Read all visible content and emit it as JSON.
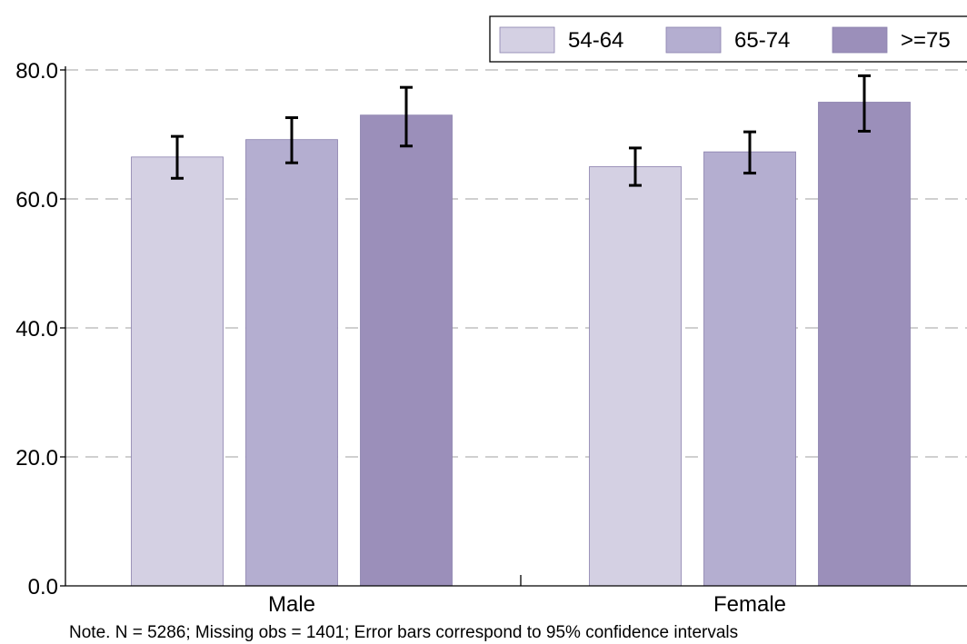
{
  "chart_data": {
    "type": "bar",
    "categories": [
      "Male",
      "Female"
    ],
    "series": [
      {
        "name": "54-64",
        "values": [
          66.5,
          65.0
        ],
        "ci_low": [
          63.2,
          62.1
        ],
        "ci_high": [
          69.7,
          67.9
        ],
        "color": "#d4d0e3"
      },
      {
        "name": "65-74",
        "values": [
          69.2,
          67.3
        ],
        "ci_low": [
          65.6,
          64.0
        ],
        "ci_high": [
          72.6,
          70.4
        ],
        "color": "#b4aed0"
      },
      {
        "name": ">=75",
        "values": [
          73.0,
          75.0
        ],
        "ci_low": [
          68.2,
          70.5
        ],
        "ci_high": [
          77.3,
          79.1
        ],
        "color": "#9b8fba"
      }
    ],
    "ylim": [
      0,
      80
    ],
    "yticks": [
      "0.0",
      "20.0",
      "40.0",
      "60.0",
      "80.0"
    ],
    "ytick_values": [
      0,
      20,
      40,
      60,
      80
    ],
    "grid": "horizontal dashed",
    "legend_position": "top-right",
    "error_bars": true
  },
  "note": "Note. N = 5286; Missing obs = 1401; Error bars correspond to 95% confidence intervals"
}
